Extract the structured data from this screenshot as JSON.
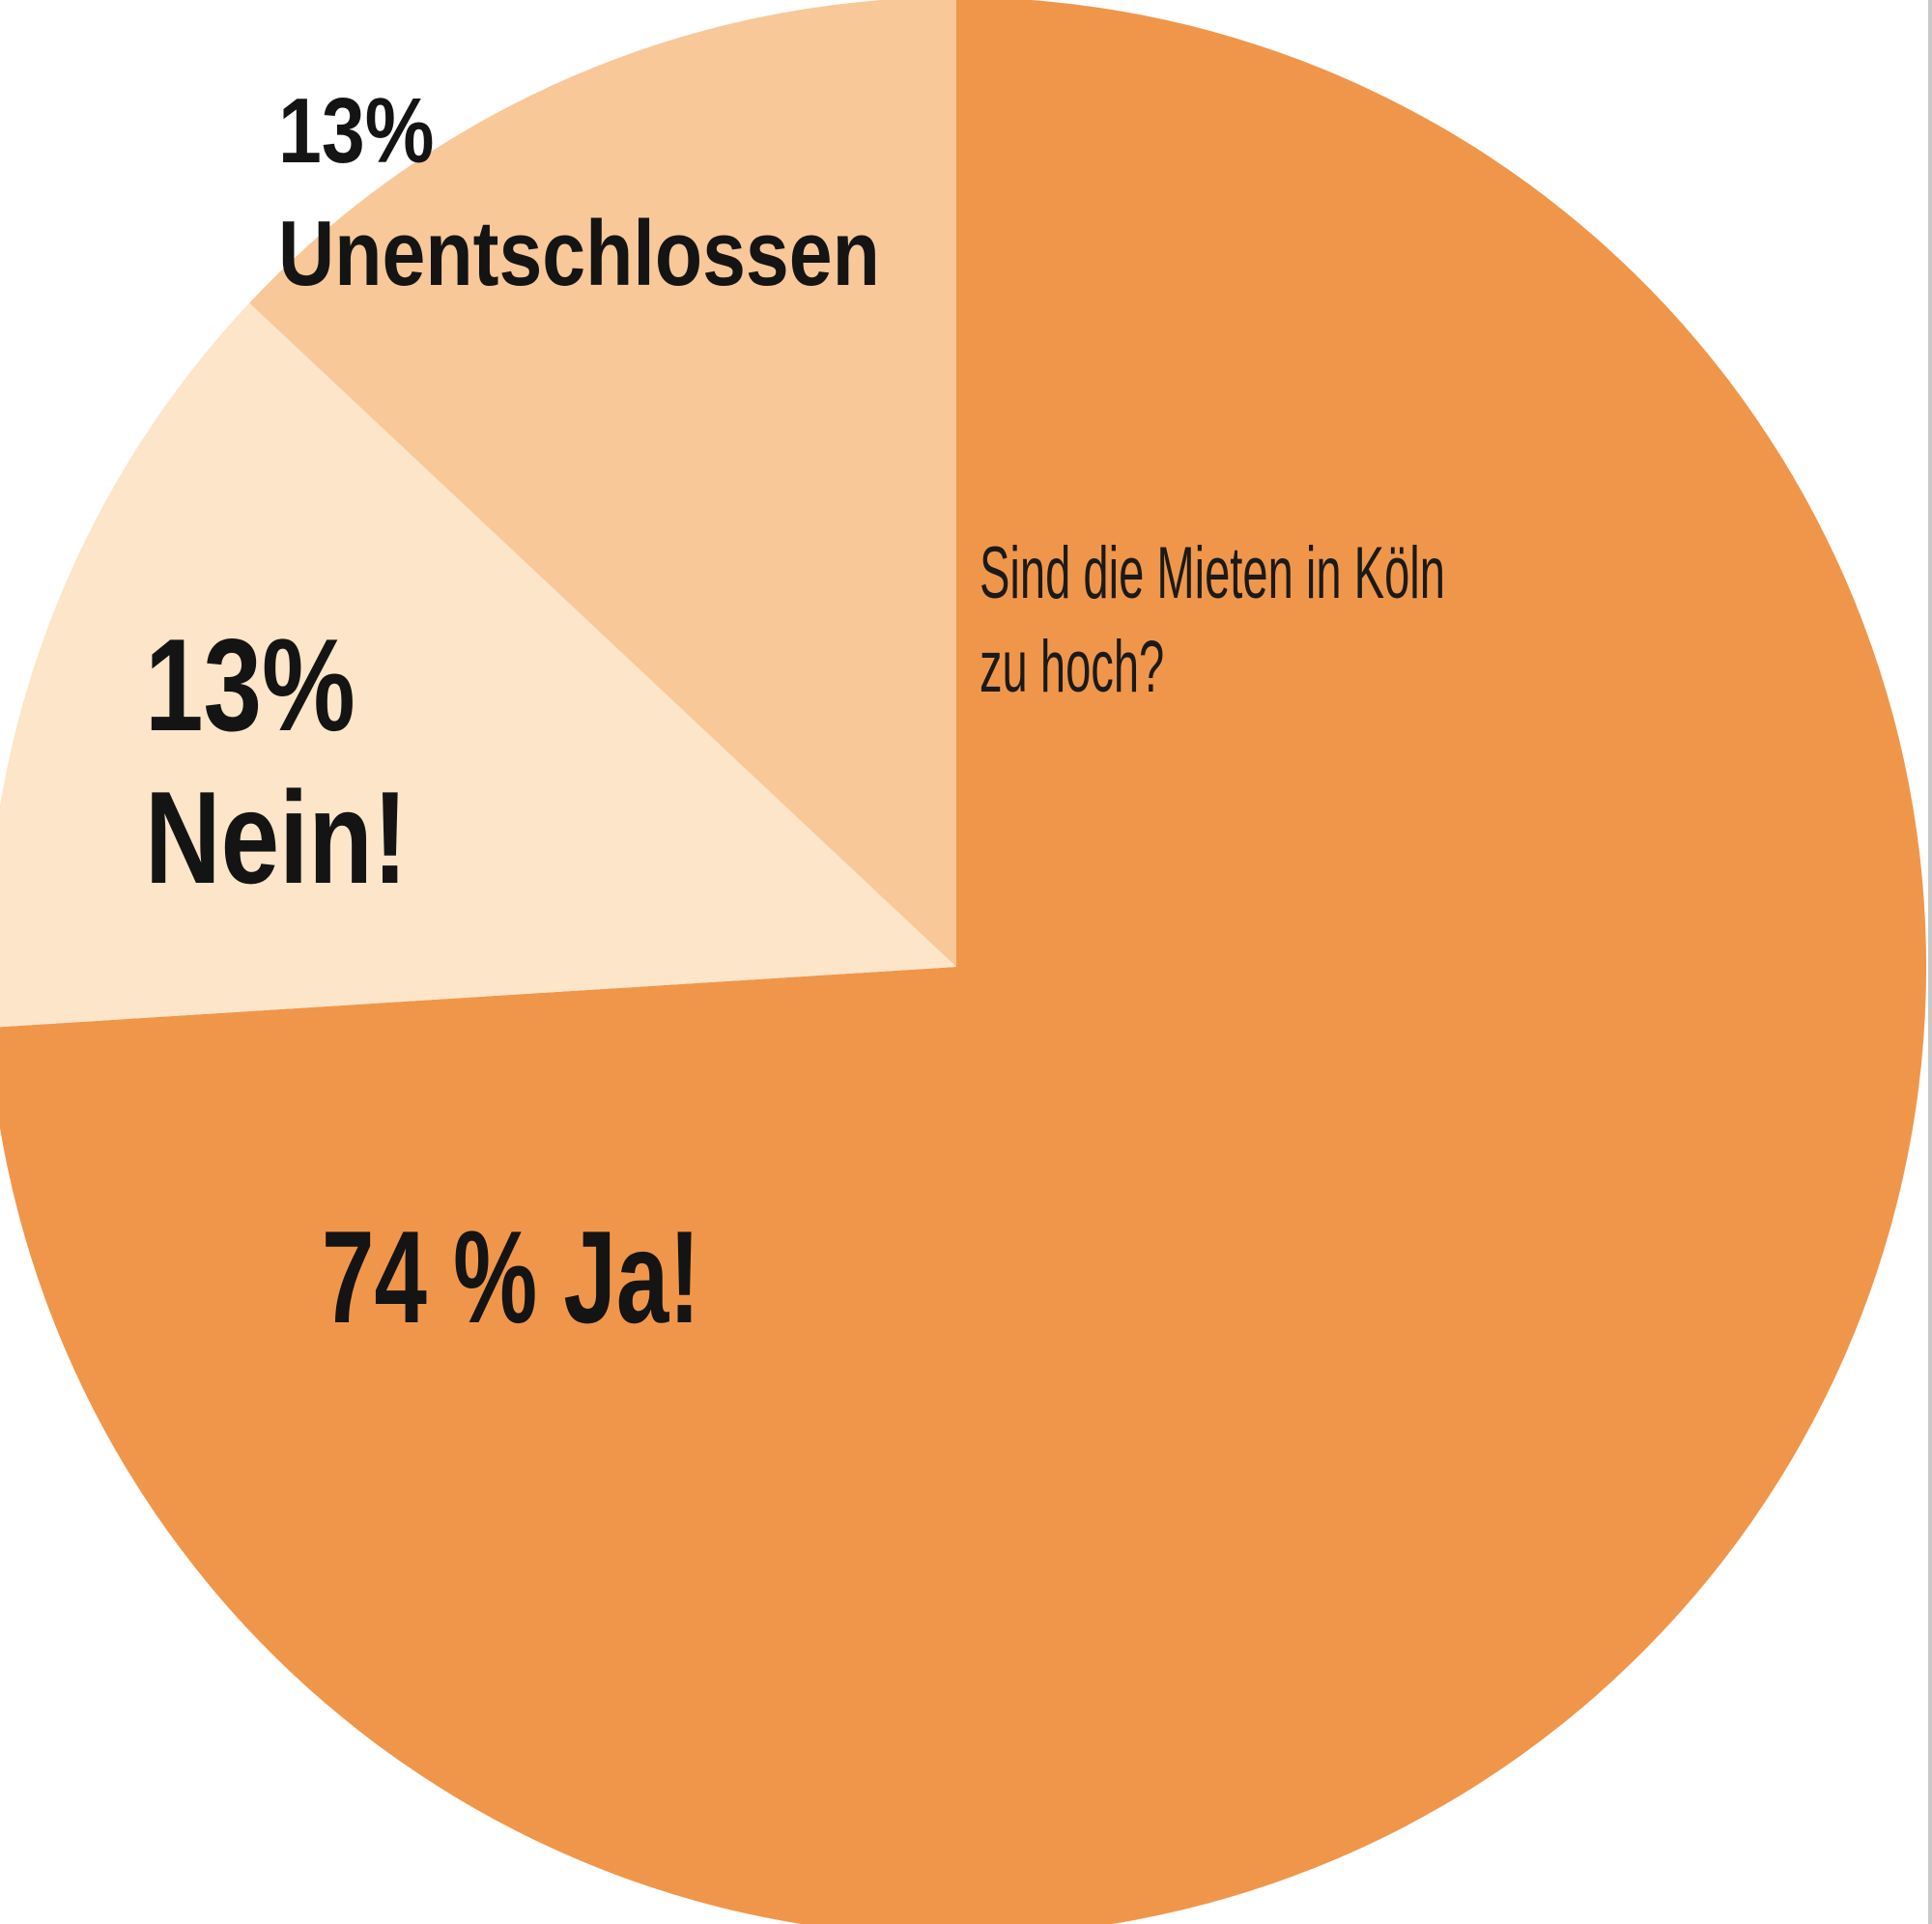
{
  "chart_data": {
    "type": "pie",
    "title": "Sind die Mieten in Köln zu hoch?",
    "direction": "clockwise",
    "start_angle_deg": 0,
    "legend_position": "none",
    "background": "#FFFFFF",
    "categories": [
      "Ja",
      "Nein",
      "Unentschlossen"
    ],
    "values": [
      74,
      13,
      13
    ],
    "slices": [
      {
        "label": "Ja",
        "value": 74,
        "color": "#F0964A",
        "data_label": "74 % Ja!"
      },
      {
        "label": "Nein",
        "value": 13,
        "color": "#FCE5C9",
        "data_label": "13% Nein!"
      },
      {
        "label": "Unentschlossen",
        "value": 13,
        "color": "#F8C899",
        "data_label": "13% Unentschlossen"
      }
    ]
  },
  "labels": {
    "undecided": {
      "line1": "13%",
      "line2": "Unentschlossen"
    },
    "no": {
      "line1": "13%",
      "line2": "Nein!"
    },
    "yes": {
      "line1": "74 % Ja!"
    },
    "question": {
      "line1": "Sind die Mieten in Köln",
      "line2": "zu hoch?"
    }
  },
  "colors": {
    "slice_ja": "#F0964A",
    "slice_nein": "#FCE5C9",
    "slice_unentschlossen": "#F8C899",
    "text": "#141414",
    "background": "#FFFFFF",
    "right_edge_line": "#C9C9C9"
  }
}
